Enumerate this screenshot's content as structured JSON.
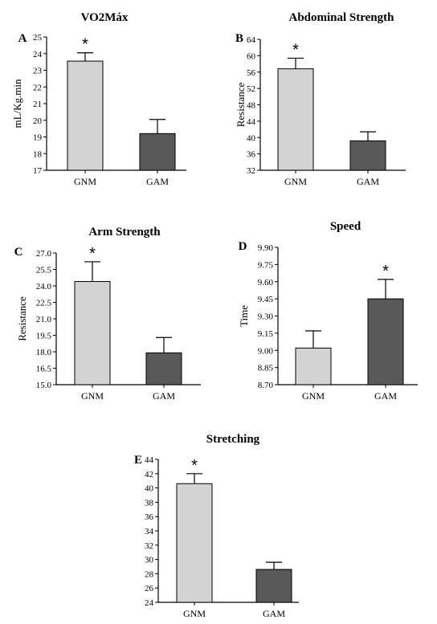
{
  "colors": {
    "light_bar": "#d3d3d3",
    "dark_bar": "#595959",
    "axis": "#000000"
  },
  "chart_data": [
    {
      "type": "bar",
      "panel": "A",
      "title": "VO2Máx",
      "xlabel": "",
      "ylabel": "mL/Kg.min",
      "ylim": [
        17,
        25
      ],
      "yticks": [
        "17",
        "18",
        "19",
        "20",
        "21",
        "22",
        "23",
        "24",
        "25"
      ],
      "categories": [
        "GNM",
        "GAM"
      ],
      "values": [
        23.55,
        19.2
      ],
      "errors": [
        0.5,
        0.85
      ],
      "significant": [
        true,
        false
      ],
      "annotation": "*",
      "grid": false
    },
    {
      "type": "bar",
      "panel": "B",
      "title": "Abdominal Strength",
      "xlabel": "",
      "ylabel": "Resistance",
      "ylim": [
        32,
        64
      ],
      "yticks": [
        "32",
        "36",
        "40",
        "44",
        "48",
        "52",
        "56",
        "60",
        "64"
      ],
      "categories": [
        "GNM",
        "GAM"
      ],
      "values": [
        56.8,
        39.2
      ],
      "errors": [
        2.6,
        2.2
      ],
      "significant": [
        true,
        false
      ],
      "annotation": "*",
      "grid": false
    },
    {
      "type": "bar",
      "panel": "C",
      "title": "Arm Strength",
      "xlabel": "",
      "ylabel": "Resistance",
      "ylim": [
        15,
        27
      ],
      "yticks": [
        "15.0",
        "16.5",
        "18.0",
        "19.5",
        "21.0",
        "22.5",
        "24.0",
        "25.5",
        "27.0"
      ],
      "categories": [
        "GNM",
        "GAM"
      ],
      "values": [
        24.4,
        17.9
      ],
      "errors": [
        1.8,
        1.4
      ],
      "significant": [
        true,
        false
      ],
      "annotation": "*",
      "grid": false
    },
    {
      "type": "bar",
      "panel": "D",
      "title": "Speed",
      "xlabel": "",
      "ylabel": "Time",
      "ylim": [
        8.7,
        9.9
      ],
      "yticks": [
        "8.70",
        "8.85",
        "9.00",
        "9.15",
        "9.30",
        "9.45",
        "9.60",
        "9.75",
        "9.90"
      ],
      "categories": [
        "GNM",
        "GAM"
      ],
      "values": [
        9.02,
        9.45
      ],
      "errors": [
        0.15,
        0.17
      ],
      "significant": [
        false,
        true
      ],
      "annotation": "*",
      "grid": false
    },
    {
      "type": "bar",
      "panel": "E",
      "title": "Stretching",
      "xlabel": "",
      "ylabel": "",
      "ylim": [
        24,
        44
      ],
      "yticks": [
        "24",
        "26",
        "28",
        "30",
        "32",
        "34",
        "36",
        "38",
        "40",
        "42",
        "44"
      ],
      "categories": [
        "GNM",
        "GAM"
      ],
      "values": [
        40.6,
        28.6
      ],
      "errors": [
        1.4,
        1.0
      ],
      "significant": [
        true,
        false
      ],
      "annotation": "*",
      "grid": false
    }
  ]
}
